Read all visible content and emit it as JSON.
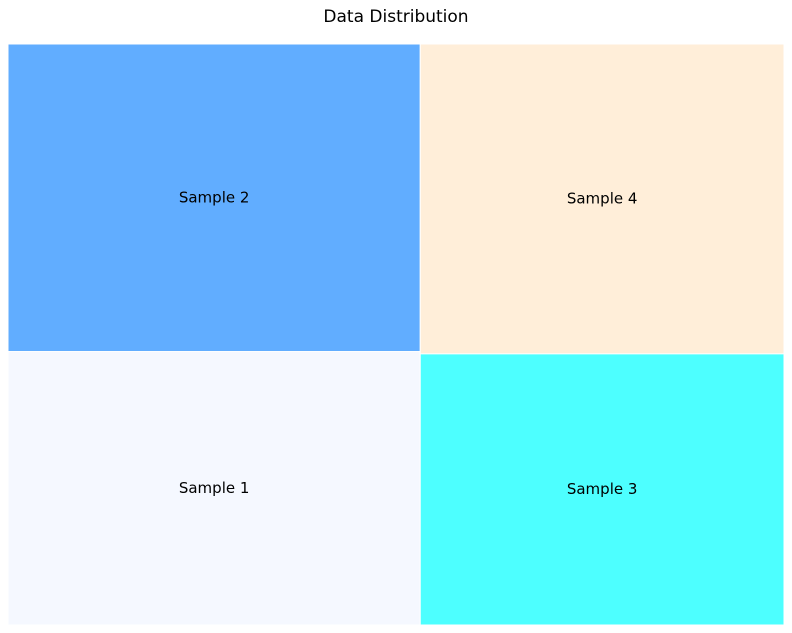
{
  "chart_data": {
    "type": "treemap",
    "title": "Data Distribution",
    "tiles": [
      {
        "label": "Sample 1",
        "value": 24,
        "color": "#f5f8ff"
      },
      {
        "label": "Sample 2",
        "value": 27,
        "color": "#61adff"
      },
      {
        "label": "Sample 3",
        "value": 21,
        "color": "#4dffff"
      },
      {
        "label": "Sample 4",
        "value": 24,
        "color": "#ffeed9"
      }
    ]
  }
}
